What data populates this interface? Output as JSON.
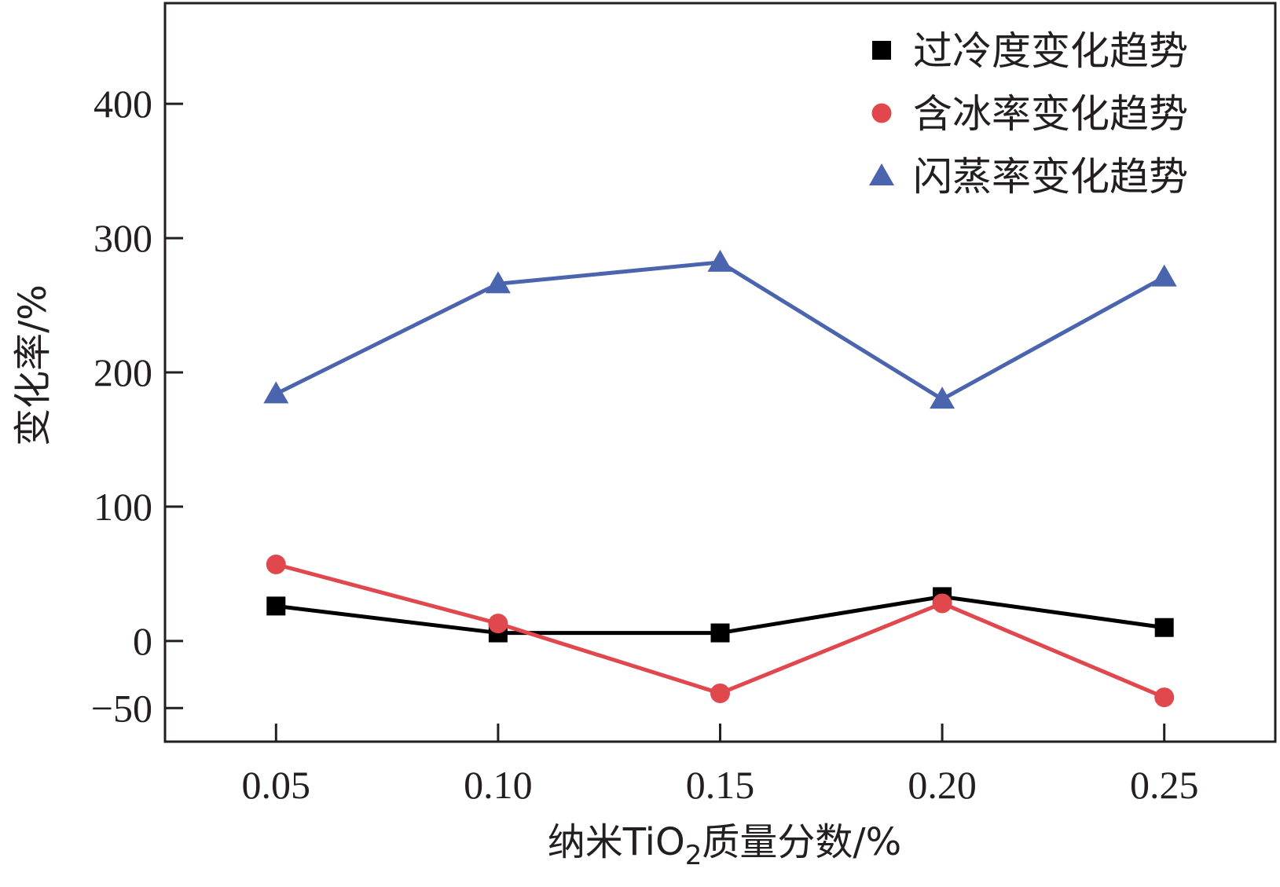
{
  "chart_data": {
    "type": "line",
    "title": "",
    "xlabel": {
      "prefix": "纳米TiO",
      "subscript": "2",
      "suffix": "质量分数/%"
    },
    "ylabel": "变化率/%",
    "x": [
      0.05,
      0.1,
      0.15,
      0.2,
      0.25
    ],
    "x_tick_labels": [
      "0.05",
      "0.10",
      "0.15",
      "0.20",
      "0.25"
    ],
    "xlim": [
      0.025,
      0.275
    ],
    "y_ticks": [
      -50,
      0,
      100,
      200,
      300,
      400
    ],
    "y_tick_labels": [
      "−50",
      "0",
      "100",
      "200",
      "300",
      "400"
    ],
    "ylim": [
      -75,
      475
    ],
    "grid": false,
    "legend_position": "top-right",
    "series": [
      {
        "name": "过冷度变化趋势",
        "marker": "square",
        "color": "#000000",
        "values": [
          26,
          6,
          6,
          33,
          10
        ]
      },
      {
        "name": "含冰率变化趋势",
        "marker": "circle",
        "color": "#e0484e",
        "values": [
          57,
          13,
          -39,
          28,
          -42
        ]
      },
      {
        "name": "闪蒸率变化趋势",
        "marker": "triangle",
        "color": "#4a64ad",
        "values": [
          184,
          266,
          282,
          180,
          271
        ]
      }
    ]
  }
}
